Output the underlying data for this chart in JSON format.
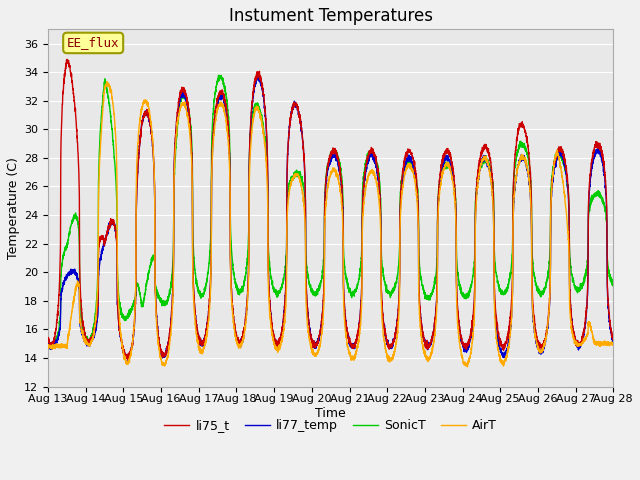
{
  "title": "Instument Temperatures",
  "xlabel": "Time",
  "ylabel": "Temperature (C)",
  "ylim": [
    12,
    37
  ],
  "yticks": [
    12,
    14,
    16,
    18,
    20,
    22,
    24,
    26,
    28,
    30,
    32,
    34,
    36
  ],
  "x_tick_labels": [
    "Aug 13",
    "Aug 14",
    "Aug 15",
    "Aug 16",
    "Aug 17",
    "Aug 18",
    "Aug 19",
    "Aug 20",
    "Aug 21",
    "Aug 22",
    "Aug 23",
    "Aug 24",
    "Aug 25",
    "Aug 26",
    "Aug 27",
    "Aug 28"
  ],
  "series_colors": {
    "li75_t": "#cc0000",
    "li77_temp": "#0000cc",
    "SonicT": "#00cc00",
    "AirT": "#ffaa00"
  },
  "annotation_text": "EE_flux",
  "background_color": "#e8e8e8",
  "fig_color": "#f0f0f0",
  "title_fontsize": 12,
  "axis_label_fontsize": 9,
  "tick_fontsize": 8,
  "legend_fontsize": 9,
  "linewidth": 1.0,
  "n_days": 15,
  "n_per_day": 288,
  "peak_hour": 14.0,
  "trough_hour": 4.0,
  "peak_sharpness": 3.0,
  "li75_peaks": [
    35.3,
    22.2,
    31.0,
    32.8,
    32.5,
    34.0,
    32.0,
    28.5,
    28.5,
    28.5,
    28.5,
    28.6,
    30.5,
    28.6,
    29.0
  ],
  "li75_troughs": [
    14.9,
    15.3,
    13.2,
    14.8,
    15.2,
    15.0,
    15.0,
    14.8,
    14.8,
    14.8,
    14.8,
    14.8,
    14.8,
    14.8,
    15.0
  ],
  "li77_peaks": [
    19.8,
    22.2,
    31.0,
    32.5,
    32.2,
    33.8,
    32.0,
    28.2,
    28.2,
    28.0,
    28.0,
    28.0,
    28.0,
    28.3,
    28.5
  ],
  "li77_troughs": [
    14.8,
    15.3,
    13.2,
    14.8,
    15.2,
    14.8,
    15.0,
    14.8,
    14.8,
    14.8,
    14.8,
    14.5,
    14.0,
    14.8,
    14.8
  ],
  "sonic_peaks": [
    22.0,
    33.8,
    17.5,
    32.2,
    33.8,
    32.0,
    26.8,
    28.5,
    28.5,
    27.8,
    27.5,
    27.8,
    29.0,
    28.5,
    25.5
  ],
  "sonic_troughs": [
    14.8,
    15.5,
    17.8,
    17.8,
    18.8,
    18.5,
    18.5,
    18.5,
    18.5,
    18.5,
    18.0,
    18.5,
    18.5,
    18.5,
    19.0
  ],
  "airt_peaks": [
    14.8,
    33.3,
    32.0,
    31.8,
    31.8,
    31.8,
    26.8,
    27.2,
    27.0,
    27.5,
    27.5,
    28.0,
    28.0,
    28.8,
    15.0
  ],
  "airt_troughs": [
    14.8,
    15.0,
    12.8,
    14.0,
    14.8,
    14.8,
    14.5,
    14.0,
    14.0,
    13.8,
    14.0,
    13.2,
    14.0,
    14.8,
    15.0
  ]
}
